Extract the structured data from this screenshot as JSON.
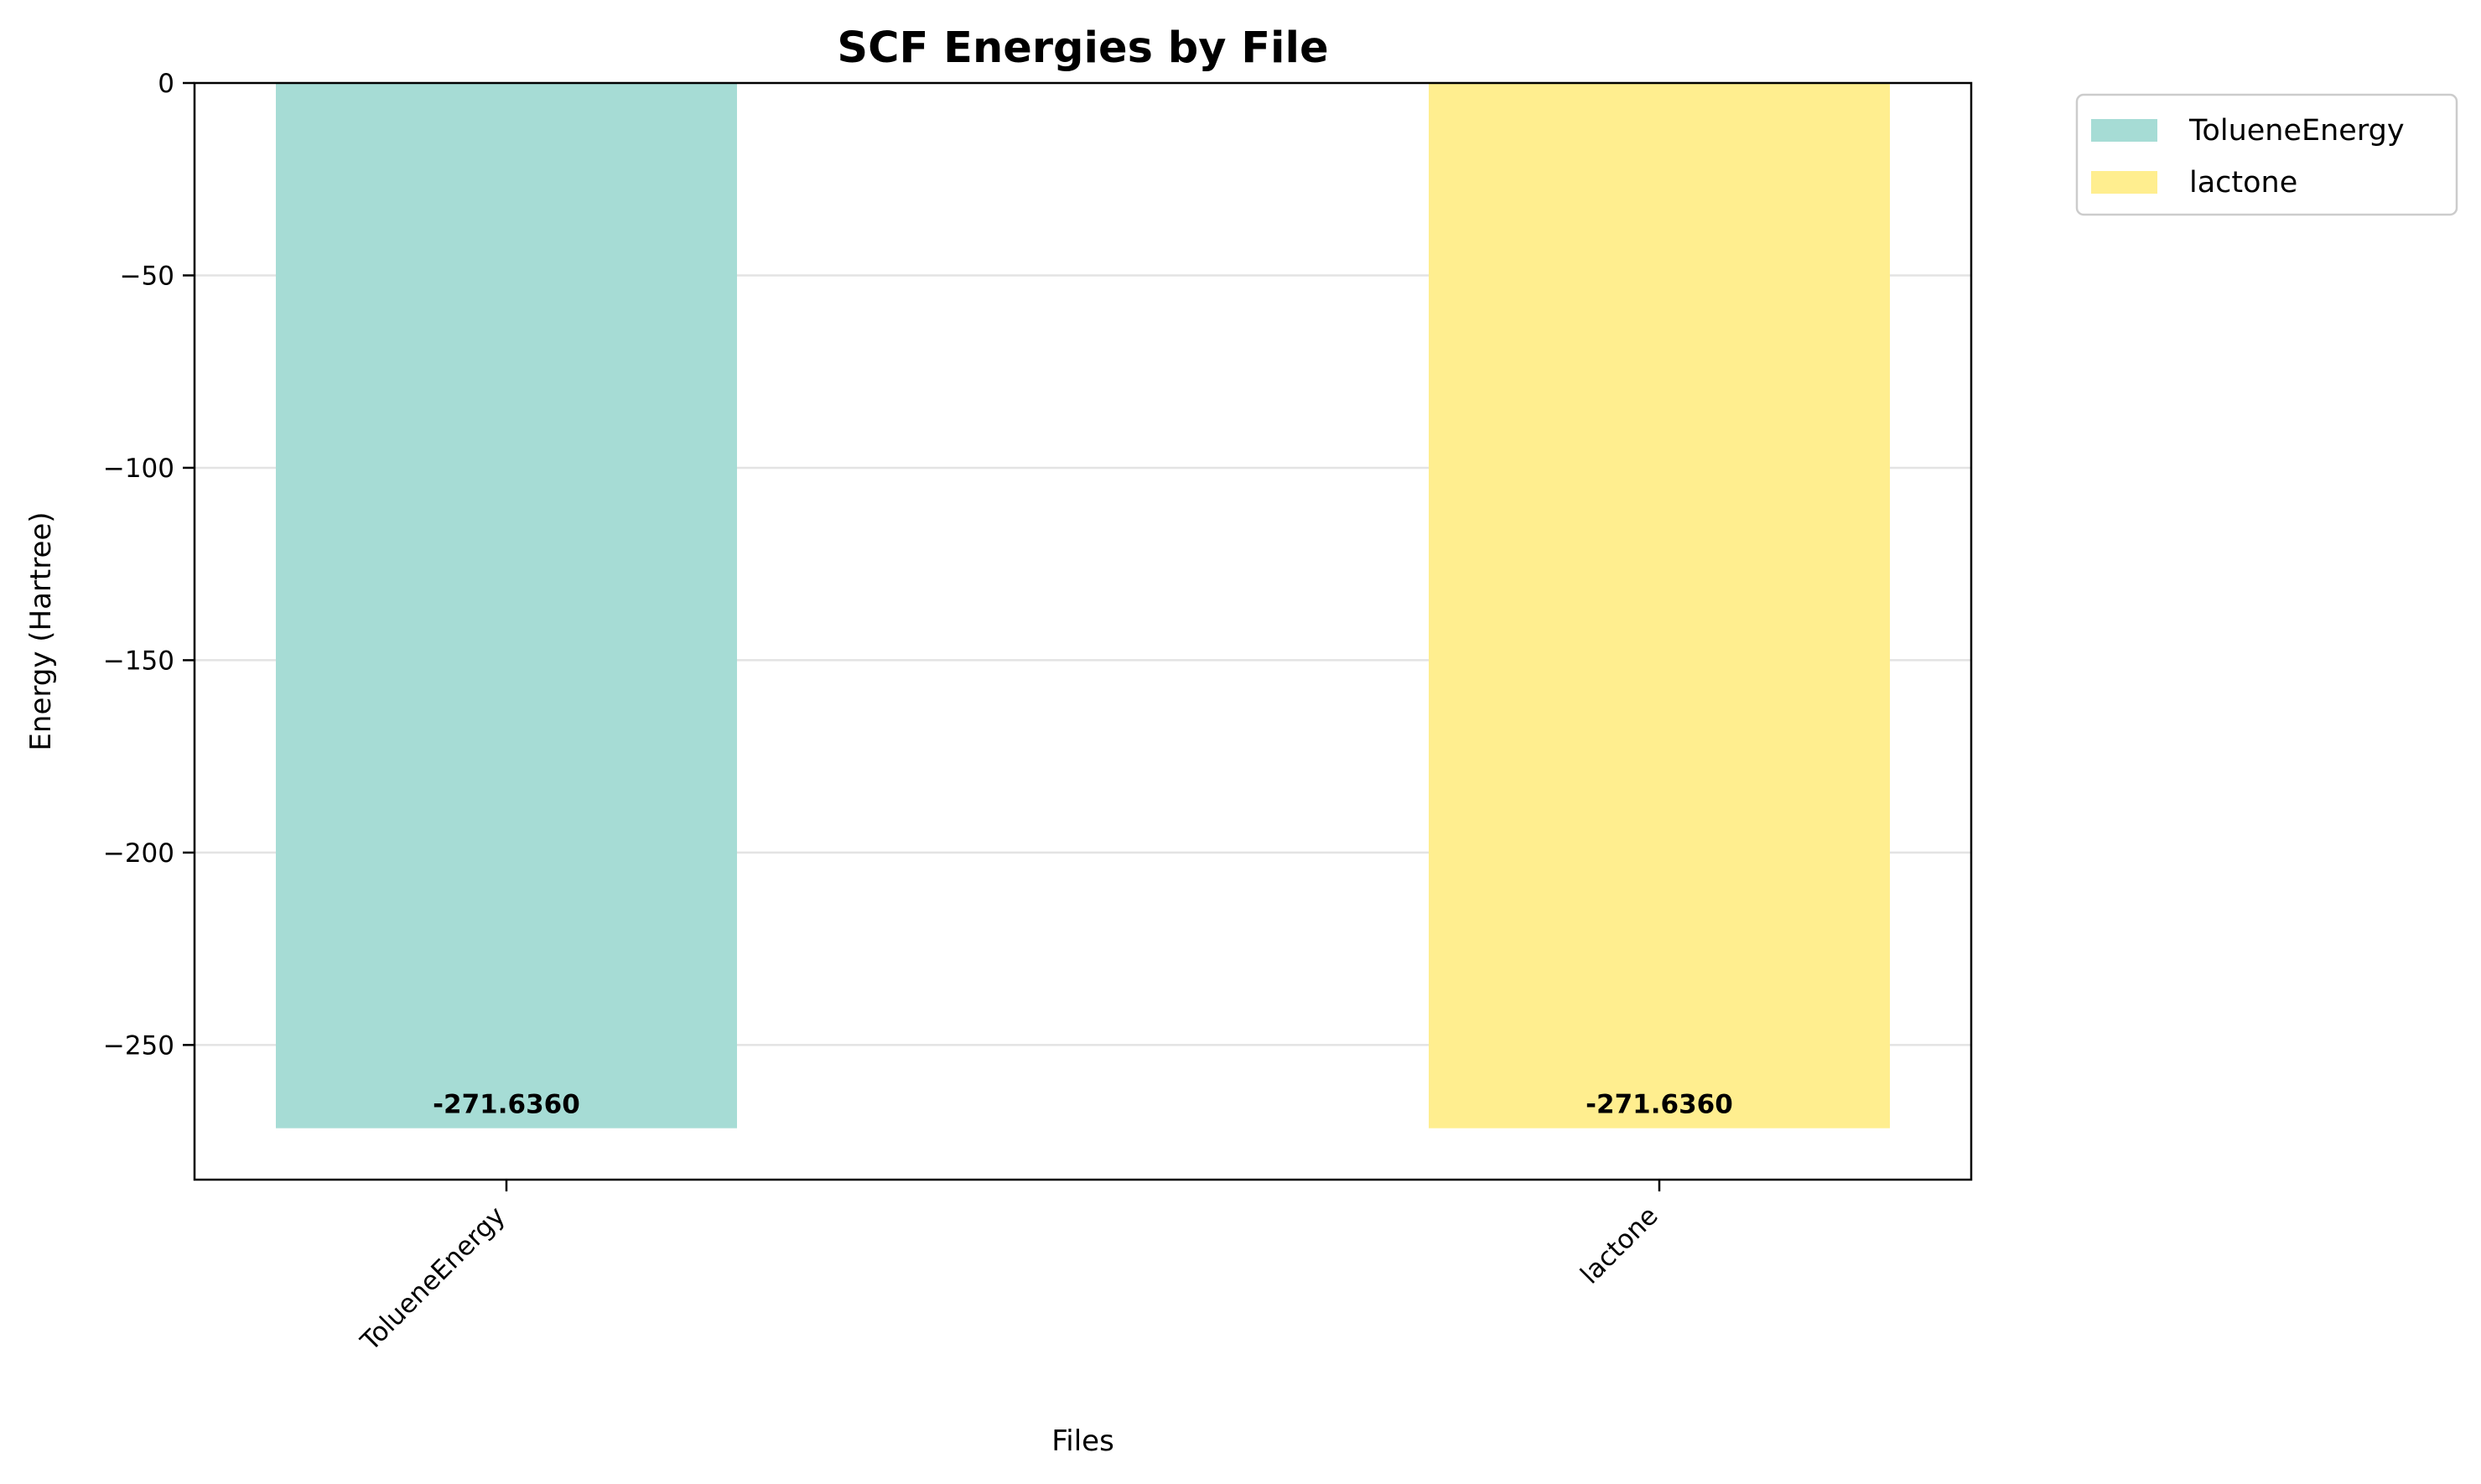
{
  "chart_data": {
    "type": "bar",
    "title": "SCF Energies by File",
    "xlabel": "Files",
    "ylabel": "Energy (Hartree)",
    "categories": [
      "TolueneEnergy",
      "lactone"
    ],
    "values": [
      -271.636,
      -271.636
    ],
    "value_labels": [
      "-271.6360",
      "-271.6360"
    ],
    "colors": [
      "#a6dcd5",
      "#ffee8f"
    ],
    "ylim": [
      -285,
      0
    ],
    "yticks": [
      0,
      -50,
      -100,
      -150,
      -200,
      -250
    ],
    "ytick_labels": [
      "0",
      "−50",
      "−100",
      "−150",
      "−200",
      "−250"
    ],
    "grid": "y",
    "legend": {
      "placement": "outside-top-right",
      "entries": [
        "TolueneEnergy",
        "lactone"
      ]
    }
  }
}
